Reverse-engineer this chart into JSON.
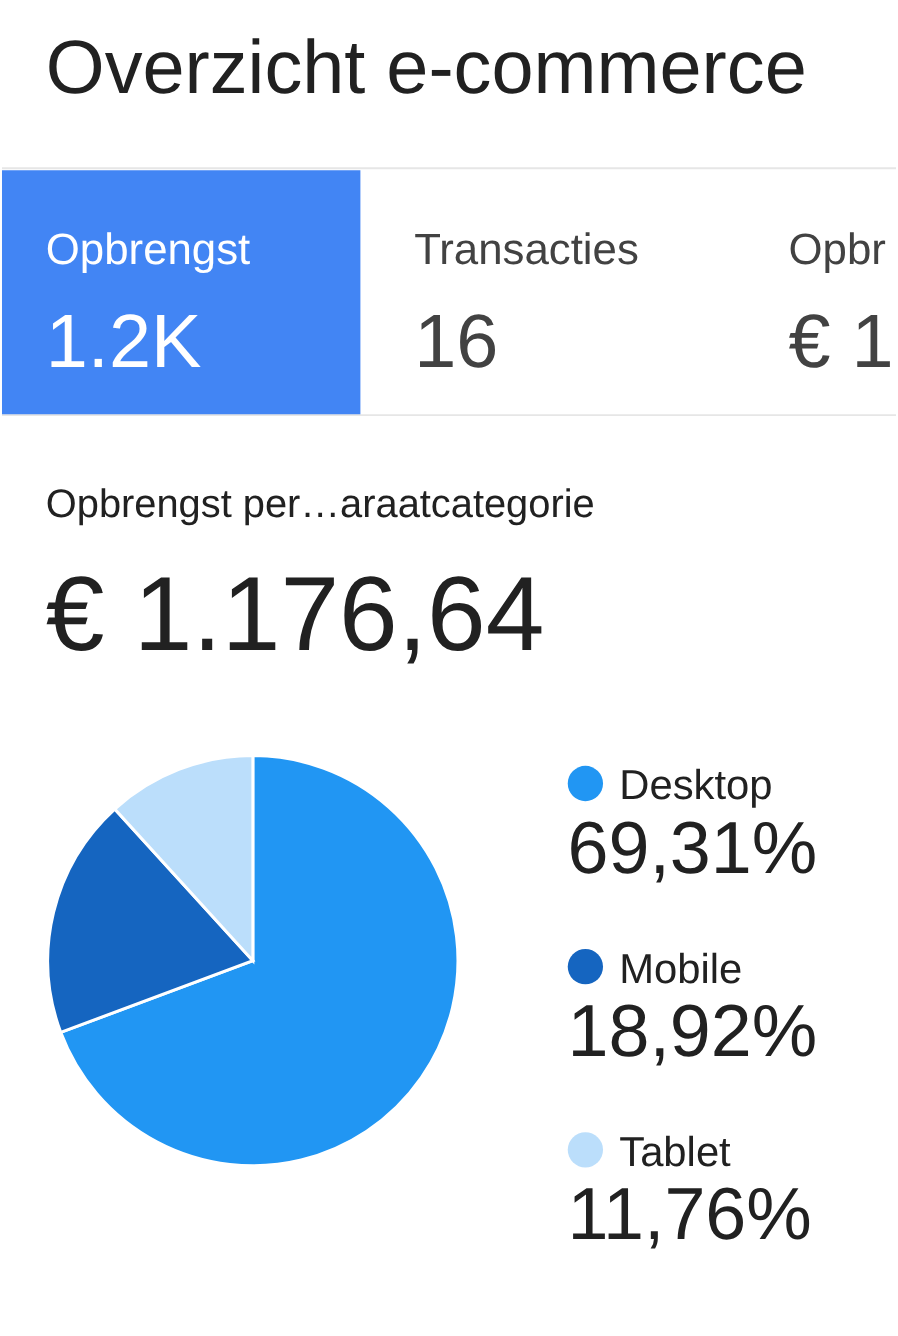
{
  "chart_data": [
    {
      "type": "other",
      "title": "Overzicht e-commerce",
      "annotations": [
        "Opbrengst",
        "1.2K",
        "Transacties",
        "16",
        "Opbr",
        "€ 1"
      ]
    },
    {
      "type": "pie",
      "title": "Opbrengst per…araatcategorie",
      "subtitle": "€ 1.176,64",
      "categories": [
        "Desktop",
        "Mobile",
        "Tablet"
      ],
      "values": [
        69.31,
        18.92,
        11.76
      ],
      "colors": [
        "#2196f3",
        "#1565c0",
        "#bbdefb"
      ],
      "value_labels": [
        "69,31%",
        "18,92%",
        "11,76%"
      ],
      "legend": "right"
    }
  ]
}
